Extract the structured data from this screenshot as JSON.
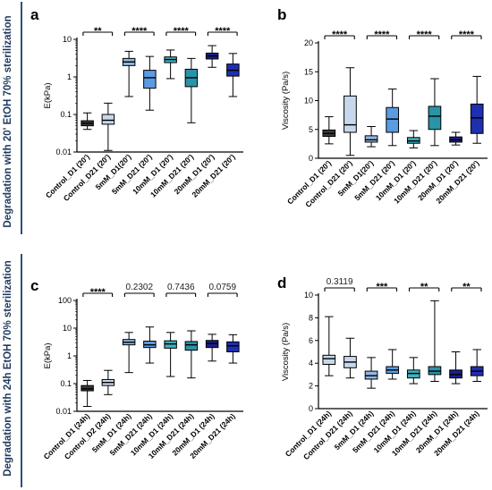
{
  "side_labels": {
    "top": "Degradation with 20' EtOH 70% sterilization",
    "bottom": "Degradation with 24h EtOH 70% sterilization"
  },
  "colors": {
    "side_bar": "#2f4f7f",
    "control": "#3a3a3a",
    "control_light": "#c8d8ec",
    "mm5_d1": "#8fb6e3",
    "mm5_d21": "#5a9be2",
    "mm10_d1": "#3db0c0",
    "mm10_d21": "#2a93a6",
    "mm20_d1": "#1a1f8c",
    "mm20_d21": "#1e2fb0"
  },
  "chart_data": [
    {
      "panel": "a",
      "type": "box",
      "ylabel": "E(kPa)",
      "yscale": "log",
      "ylim": [
        0.01,
        10
      ],
      "yticks": [
        "0.01",
        "0.1",
        "1",
        "10"
      ],
      "categories": [
        "Control_D1 (20')",
        "Control_D21 (20')",
        "5mM_D1(20')",
        "5mM_D21 (20')",
        "10mM_D1 (20')",
        "10mM_D21 (20')",
        "20mM_D1 (20')",
        "20mM_D21 (20')"
      ],
      "boxes": [
        {
          "min": 0.04,
          "q1": 0.05,
          "median": 0.058,
          "q3": 0.068,
          "max": 0.11,
          "fill": "control"
        },
        {
          "min": 0.011,
          "q1": 0.055,
          "median": 0.07,
          "q3": 0.1,
          "max": 0.2,
          "fill": "control_light"
        },
        {
          "min": 0.3,
          "q1": 2.0,
          "median": 2.5,
          "q3": 3.1,
          "max": 4.8,
          "fill": "mm5_d1"
        },
        {
          "min": 0.13,
          "q1": 0.5,
          "median": 0.95,
          "q3": 1.5,
          "max": 3.5,
          "fill": "mm5_d21"
        },
        {
          "min": 0.9,
          "q1": 2.4,
          "median": 2.9,
          "q3": 3.4,
          "max": 5.2,
          "fill": "mm10_d1"
        },
        {
          "min": 0.06,
          "q1": 0.55,
          "median": 0.95,
          "q3": 1.6,
          "max": 3.1,
          "fill": "mm10_d21"
        },
        {
          "min": 1.8,
          "q1": 3.0,
          "median": 3.6,
          "q3": 4.3,
          "max": 6.8,
          "fill": "mm20_d1"
        },
        {
          "min": 0.3,
          "q1": 1.05,
          "median": 1.5,
          "q3": 2.2,
          "max": 4.2,
          "fill": "mm20_d21"
        }
      ],
      "significance": [
        {
          "pair": [
            0,
            1
          ],
          "label": "**"
        },
        {
          "pair": [
            2,
            3
          ],
          "label": "****"
        },
        {
          "pair": [
            4,
            5
          ],
          "label": "****"
        },
        {
          "pair": [
            6,
            7
          ],
          "label": "****"
        }
      ]
    },
    {
      "panel": "b",
      "type": "box",
      "ylabel": "Viscosity (Pa/s)",
      "yscale": "linear",
      "ylim": [
        0,
        20
      ],
      "yticks": [
        "0",
        "5",
        "10",
        "15",
        "20"
      ],
      "categories": [
        "Control_D1 (20')",
        "Control_D21 (20')",
        "5mM_D1(20')",
        "5mM_D21 (20')",
        "10mM_D1 (20')",
        "10mM_D21 (20')",
        "20mM_D1 (20')",
        "20mM_D21 (20')"
      ],
      "boxes": [
        {
          "min": 2.5,
          "q1": 3.8,
          "median": 4.3,
          "q3": 4.9,
          "max": 7.2,
          "fill": "control"
        },
        {
          "min": 0.5,
          "q1": 4.5,
          "median": 5.8,
          "q3": 10.8,
          "max": 15.7,
          "fill": "control_light"
        },
        {
          "min": 2.0,
          "q1": 2.8,
          "median": 3.2,
          "q3": 3.9,
          "max": 5.5,
          "fill": "mm5_d1"
        },
        {
          "min": 2.2,
          "q1": 4.5,
          "median": 6.8,
          "q3": 8.8,
          "max": 12.0,
          "fill": "mm5_d21"
        },
        {
          "min": 1.8,
          "q1": 2.6,
          "median": 3.0,
          "q3": 3.6,
          "max": 4.8,
          "fill": "mm10_d1"
        },
        {
          "min": 2.2,
          "q1": 5.0,
          "median": 7.3,
          "q3": 9.0,
          "max": 13.8,
          "fill": "mm10_d21"
        },
        {
          "min": 2.3,
          "q1": 2.8,
          "median": 3.2,
          "q3": 3.7,
          "max": 4.5,
          "fill": "mm20_d1"
        },
        {
          "min": 2.6,
          "q1": 4.3,
          "median": 7.0,
          "q3": 9.4,
          "max": 14.2,
          "fill": "mm20_d21"
        }
      ],
      "significance": [
        {
          "pair": [
            0,
            1
          ],
          "label": "****"
        },
        {
          "pair": [
            2,
            3
          ],
          "label": "****"
        },
        {
          "pair": [
            4,
            5
          ],
          "label": "****"
        },
        {
          "pair": [
            6,
            7
          ],
          "label": "****"
        }
      ]
    },
    {
      "panel": "c",
      "type": "box",
      "ylabel": "E(kPa)",
      "yscale": "log",
      "ylim": [
        0.01,
        100
      ],
      "yticks": [
        "0.01",
        "0.1",
        "1",
        "10",
        "100"
      ],
      "categories": [
        "Control_D1 (24h)",
        "Control_D2 (24h)",
        "5mM_D1 (24h)",
        "5mM_D21 (24h)",
        "10mM_D1 (24h)",
        "10mM_D21 (24h)",
        "20mM_D1 (24h)",
        "20mM_D21 (24h)"
      ],
      "boxes": [
        {
          "min": 0.015,
          "q1": 0.055,
          "median": 0.065,
          "q3": 0.085,
          "max": 0.13,
          "fill": "control"
        },
        {
          "min": 0.04,
          "q1": 0.085,
          "median": 0.11,
          "q3": 0.14,
          "max": 0.3,
          "fill": "control_light"
        },
        {
          "min": 0.25,
          "q1": 2.5,
          "median": 3.1,
          "q3": 3.9,
          "max": 7.0,
          "fill": "mm5_d1"
        },
        {
          "min": 0.55,
          "q1": 2.0,
          "median": 2.5,
          "q3": 3.4,
          "max": 11.0,
          "fill": "mm5_d21"
        },
        {
          "min": 0.18,
          "q1": 1.9,
          "median": 2.7,
          "q3": 3.5,
          "max": 7.0,
          "fill": "mm10_d1"
        },
        {
          "min": 0.16,
          "q1": 1.6,
          "median": 2.5,
          "q3": 3.3,
          "max": 8.0,
          "fill": "mm10_d21"
        },
        {
          "min": 0.65,
          "q1": 2.0,
          "median": 2.8,
          "q3": 3.6,
          "max": 6.0,
          "fill": "mm20_d1"
        },
        {
          "min": 0.55,
          "q1": 1.4,
          "median": 2.3,
          "q3": 3.2,
          "max": 5.8,
          "fill": "mm20_d21"
        }
      ],
      "significance": [
        {
          "pair": [
            0,
            1
          ],
          "label": "****",
          "type": "stars"
        },
        {
          "pair": [
            2,
            3
          ],
          "label": "0.2302",
          "type": "number"
        },
        {
          "pair": [
            4,
            5
          ],
          "label": "0.7436",
          "type": "number"
        },
        {
          "pair": [
            6,
            7
          ],
          "label": "0.0759",
          "type": "number"
        }
      ]
    },
    {
      "panel": "d",
      "type": "box",
      "ylabel": "Viscosity (Pa/s)",
      "yscale": "linear",
      "ylim": [
        0,
        10
      ],
      "yticks": [
        "0",
        "2",
        "4",
        "6",
        "8",
        "10"
      ],
      "categories": [
        "Control_D1 (24h)",
        "Control_D21 (24h)",
        "5mM_D1 (24h)",
        "5mM_D21 (24h)",
        "10mM_D1 (24h)",
        "10mM_D21 (24h)",
        "20mM_D1 (24h)",
        "20mM_D21 (24h)"
      ],
      "boxes": [
        {
          "min": 2.9,
          "q1": 3.9,
          "median": 4.4,
          "q3": 4.7,
          "max": 8.1,
          "fill": "control_light"
        },
        {
          "min": 2.7,
          "q1": 3.6,
          "median": 4.1,
          "q3": 4.6,
          "max": 6.2,
          "fill": "control_light"
        },
        {
          "min": 1.8,
          "q1": 2.6,
          "median": 2.9,
          "q3": 3.3,
          "max": 4.5,
          "fill": "mm5_d1"
        },
        {
          "min": 2.6,
          "q1": 3.1,
          "median": 3.4,
          "q3": 3.7,
          "max": 5.2,
          "fill": "mm5_d21"
        },
        {
          "min": 2.2,
          "q1": 2.7,
          "median": 3.1,
          "q3": 3.4,
          "max": 4.5,
          "fill": "mm10_d1"
        },
        {
          "min": 2.4,
          "q1": 3.0,
          "median": 3.3,
          "q3": 3.7,
          "max": 9.5,
          "fill": "mm10_d21"
        },
        {
          "min": 2.2,
          "q1": 2.7,
          "median": 3.0,
          "q3": 3.4,
          "max": 5.0,
          "fill": "mm20_d1"
        },
        {
          "min": 2.4,
          "q1": 2.9,
          "median": 3.3,
          "q3": 3.7,
          "max": 5.2,
          "fill": "mm20_d21"
        }
      ],
      "significance": [
        {
          "pair": [
            0,
            1
          ],
          "label": "0.3119",
          "type": "number"
        },
        {
          "pair": [
            2,
            3
          ],
          "label": "***",
          "type": "stars"
        },
        {
          "pair": [
            4,
            5
          ],
          "label": "**",
          "type": "stars"
        },
        {
          "pair": [
            6,
            7
          ],
          "label": "**",
          "type": "stars"
        }
      ]
    }
  ]
}
